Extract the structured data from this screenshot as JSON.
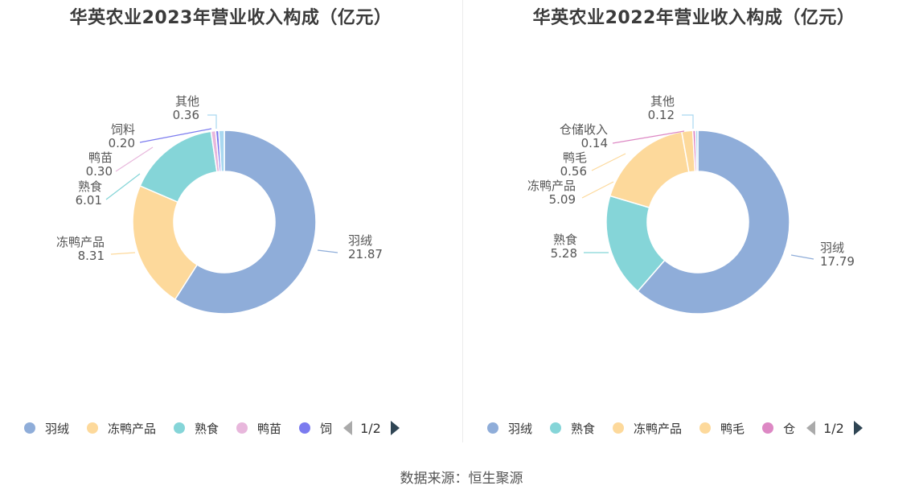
{
  "source_text": "数据来源：恒生聚源",
  "chart_data": [
    {
      "type": "pie",
      "title": "华英农业2023年营业收入构成（亿元）",
      "slices": [
        {
          "name": "羽绒",
          "value": 21.87,
          "label": "21.87",
          "color": "#8fadd9"
        },
        {
          "name": "冻鸭产品",
          "value": 8.31,
          "label": "8.31",
          "color": "#fdd99b"
        },
        {
          "name": "熟食",
          "value": 6.01,
          "label": "6.01",
          "color": "#85d5d8"
        },
        {
          "name": "鸭苗",
          "value": 0.3,
          "label": "0.30",
          "color": "#e8b7dc"
        },
        {
          "name": "饲料",
          "value": 0.2,
          "label": "0.20",
          "color": "#7b7bef"
        },
        {
          "name": "其他",
          "value": 0.36,
          "label": "0.36",
          "color": "#a9d8f0"
        }
      ],
      "legend": {
        "items": [
          "羽绒",
          "冻鸭产品",
          "熟食",
          "鸭苗",
          "饲"
        ],
        "page": "1/2"
      }
    },
    {
      "type": "pie",
      "title": "华英农业2022年营业收入构成（亿元）",
      "slices": [
        {
          "name": "羽绒",
          "value": 17.79,
          "label": "17.79",
          "color": "#8fadd9"
        },
        {
          "name": "熟食",
          "value": 5.28,
          "label": "5.28",
          "color": "#85d5d8"
        },
        {
          "name": "冻鸭产品",
          "value": 5.09,
          "label": "5.09",
          "color": "#fdd99b"
        },
        {
          "name": "鸭毛",
          "value": 0.56,
          "label": "0.56",
          "color": "#fdd99b"
        },
        {
          "name": "仓储收入",
          "value": 0.14,
          "label": "0.14",
          "color": "#dd88c4"
        },
        {
          "name": "其他",
          "value": 0.12,
          "label": "0.12",
          "color": "#a9d8f0"
        }
      ],
      "legend": {
        "items": [
          "羽绒",
          "熟食",
          "冻鸭产品",
          "鸭毛",
          "仓"
        ],
        "page": "1/2"
      }
    }
  ]
}
